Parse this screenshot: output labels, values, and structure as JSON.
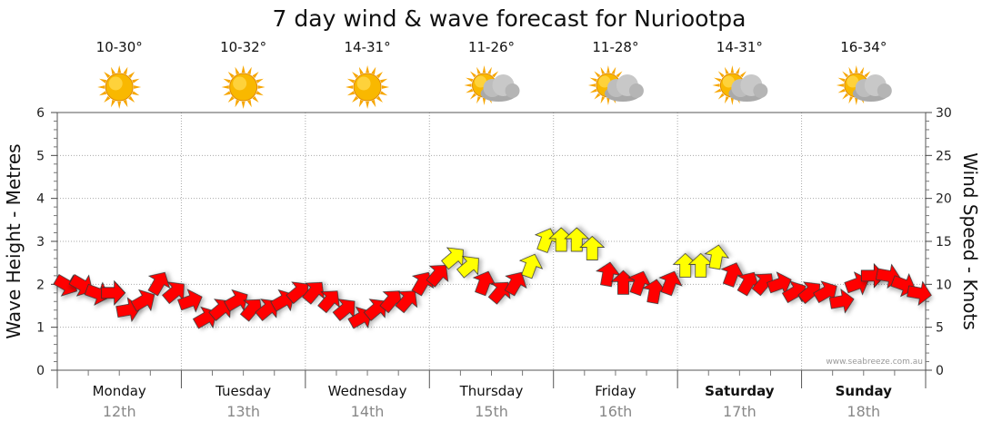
{
  "chart_data": {
    "type": "line",
    "title": "7 day wind & wave forecast for Nuriootpa",
    "ylabel_left": "Wave Height - Metres",
    "ylabel_right": "Wind Speed - Knots",
    "ylim_left": [
      0,
      6
    ],
    "ylim_right": [
      0,
      30
    ],
    "yticks_left": [
      "0",
      "1",
      "2",
      "3",
      "4",
      "5",
      "6"
    ],
    "yticks_right": [
      "0",
      "5",
      "10",
      "15",
      "20",
      "25",
      "30"
    ],
    "credit": "www.seabreeze.com.au",
    "days": [
      {
        "name": "Monday",
        "date": "12th",
        "temp": "10-30°",
        "weather": "sunny",
        "bold": false
      },
      {
        "name": "Tuesday",
        "date": "13th",
        "temp": "10-32°",
        "weather": "sunny",
        "bold": false
      },
      {
        "name": "Wednesday",
        "date": "14th",
        "temp": "14-31°",
        "weather": "sunny",
        "bold": false
      },
      {
        "name": "Thursday",
        "date": "15th",
        "temp": "11-26°",
        "weather": "partly-cloudy",
        "bold": false
      },
      {
        "name": "Friday",
        "date": "16th",
        "temp": "11-28°",
        "weather": "partly-cloudy",
        "bold": false
      },
      {
        "name": "Saturday",
        "date": "17th",
        "temp": "14-31°",
        "weather": "partly-cloudy",
        "bold": true
      },
      {
        "name": "Sunday",
        "date": "18th",
        "temp": "16-34°",
        "weather": "partly-cloudy",
        "bold": true
      }
    ],
    "wind_series": {
      "name": "Wind speed (knots)",
      "hours": [
        0,
        3,
        6,
        9,
        12,
        15,
        18,
        21,
        24,
        27,
        30,
        33,
        36,
        39,
        42,
        45,
        48,
        51,
        54,
        57,
        60,
        63,
        66,
        69,
        72,
        75,
        78,
        81,
        84,
        87,
        90,
        93,
        96,
        99,
        102,
        105,
        108,
        111,
        114,
        117,
        120,
        123,
        126,
        129,
        132,
        135,
        138,
        141,
        144,
        147,
        150,
        153,
        156,
        159,
        162,
        165
      ],
      "speed": [
        10,
        10,
        9,
        9,
        7,
        8,
        10,
        9,
        8,
        6,
        7,
        8,
        7,
        7,
        8,
        9,
        9,
        8,
        7,
        6,
        7,
        8,
        8,
        10,
        11,
        13,
        12,
        10,
        9,
        10,
        12,
        15,
        15,
        15,
        14,
        11,
        10,
        10,
        9,
        10,
        12,
        12,
        13,
        11,
        10,
        10,
        10,
        9,
        9,
        9,
        8,
        10,
        11,
        11,
        10,
        9
      ],
      "direction_deg": [
        300,
        300,
        290,
        270,
        260,
        240,
        210,
        230,
        250,
        240,
        230,
        240,
        220,
        230,
        240,
        230,
        220,
        220,
        230,
        240,
        230,
        220,
        220,
        210,
        220,
        230,
        230,
        200,
        220,
        210,
        200,
        200,
        180,
        180,
        180,
        190,
        180,
        200,
        190,
        200,
        180,
        180,
        190,
        200,
        210,
        220,
        250,
        240,
        230,
        240,
        260,
        250,
        270,
        280,
        290,
        280
      ],
      "color_scale": [
        {
          "threshold": 0,
          "color": "#ff0000",
          "label": "below 12 knots"
        },
        {
          "threshold": 12,
          "color": "#ffff00",
          "label": "12 knots and above"
        }
      ]
    }
  }
}
